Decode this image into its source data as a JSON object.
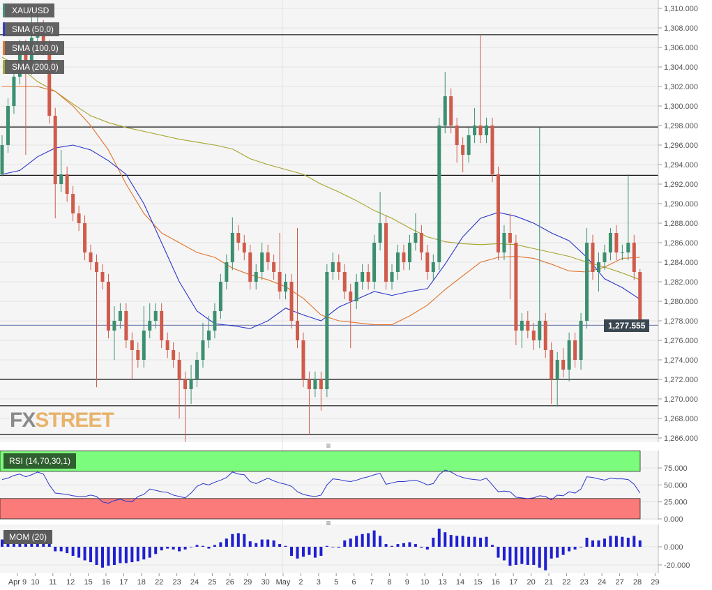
{
  "chart_data": {
    "type": "candlestick",
    "symbol": "XAU/USD",
    "colors": {
      "up": "#3b8f6f",
      "down": "#cf5b4b",
      "sma50": "#2a35c8",
      "sma100": "#e0722a",
      "sma200": "#a6a22a",
      "rsi": "#2a35c8",
      "mom": "#1f1fd0",
      "overbought": "#7cfc7c",
      "oversold": "#fb7b7b"
    },
    "legend": [
      "XAU/USD",
      "SMA (50,0)",
      "SMA (100,0)",
      "SMA (200,0)"
    ],
    "y_ticks": [
      "1,310.000",
      "1,308.000",
      "1,306.000",
      "1,304.000",
      "1,302.000",
      "1,300.000",
      "1,298.000",
      "1,296.000",
      "1,294.000",
      "1,292.000",
      "1,290.000",
      "1,288.000",
      "1,286.000",
      "1,284.000",
      "1,282.000",
      "1,280.000",
      "1,278.000",
      "1,276.000",
      "1,274.000",
      "1,272.000",
      "1,270.000",
      "1,268.000",
      "1,266.000"
    ],
    "ylim": [
      1266,
      1310
    ],
    "last_price": "1,277.555",
    "horizontal_levels": [
      1307.3,
      1297.85,
      1292.9,
      1272.0,
      1269.3,
      1266.35
    ],
    "last_price_level": 1277.555,
    "x_labels": [
      "Apr 9",
      "10",
      "11",
      "12",
      "15",
      "16",
      "17",
      "18",
      "22",
      "23",
      "24",
      "25",
      "26",
      "29",
      "30",
      "May",
      "2",
      "3",
      "5",
      "6",
      "7",
      "8",
      "9",
      "10",
      "13",
      "14",
      "15",
      "16",
      "17",
      "20",
      "21",
      "22",
      "23",
      "24",
      "27",
      "28",
      "29"
    ],
    "candles": [
      [
        1293,
        1297,
        1292.8,
        1296
      ],
      [
        1296,
        1300.8,
        1295.2,
        1300
      ],
      [
        1300,
        1303.8,
        1299.2,
        1303
      ],
      [
        1303,
        1306.8,
        1302.2,
        1306
      ],
      [
        1306,
        1306.8,
        1295,
        1304
      ],
      [
        1304,
        1310,
        1303.2,
        1307
      ],
      [
        1307,
        1310.2,
        1306.2,
        1308
      ],
      [
        1308,
        1308.8,
        1305.2,
        1306
      ],
      [
        1306,
        1306.8,
        1298.2,
        1299
      ],
      [
        1299,
        1299.8,
        1288.5,
        1292
      ],
      [
        1292,
        1295.5,
        1291.2,
        1293
      ],
      [
        1293,
        1293.8,
        1290.2,
        1291
      ],
      [
        1291,
        1291.8,
        1288.2,
        1289
      ],
      [
        1289,
        1289.8,
        1287.2,
        1288
      ],
      [
        1288,
        1288.8,
        1284.2,
        1285
      ],
      [
        1285,
        1285.8,
        1283.2,
        1284
      ],
      [
        1284,
        1284.8,
        1271.2,
        1283
      ],
      [
        1283,
        1283.8,
        1281.2,
        1282
      ],
      [
        1282,
        1282.8,
        1276.2,
        1277
      ],
      [
        1277,
        1279.5,
        1274,
        1278
      ],
      [
        1278,
        1279.8,
        1277.2,
        1279
      ],
      [
        1279,
        1279.8,
        1275.2,
        1276
      ],
      [
        1276,
        1276.8,
        1272,
        1275
      ],
      [
        1275,
        1275.8,
        1273.2,
        1274
      ],
      [
        1274,
        1279.5,
        1273.2,
        1277
      ],
      [
        1277,
        1279.8,
        1276.2,
        1278
      ],
      [
        1278,
        1279.8,
        1277.2,
        1279
      ],
      [
        1279,
        1279.8,
        1275.2,
        1276
      ],
      [
        1276,
        1276.8,
        1274.2,
        1275
      ],
      [
        1275,
        1275.8,
        1273.2,
        1274
      ],
      [
        1274,
        1274.8,
        1268,
        1272
      ],
      [
        1272,
        1272.8,
        1265.6,
        1271
      ],
      [
        1271,
        1273.5,
        1269.5,
        1272
      ],
      [
        1272,
        1274.8,
        1271.2,
        1274
      ],
      [
        1274,
        1277.8,
        1273.2,
        1276
      ],
      [
        1276,
        1278.5,
        1275.2,
        1277
      ],
      [
        1277,
        1279.8,
        1276.2,
        1279
      ],
      [
        1279,
        1282.8,
        1278.2,
        1282
      ],
      [
        1282,
        1284.8,
        1281.2,
        1284
      ],
      [
        1284,
        1288.6,
        1283.2,
        1287
      ],
      [
        1287,
        1287.8,
        1285.2,
        1286
      ],
      [
        1286,
        1286.8,
        1284.2,
        1285
      ],
      [
        1285,
        1285.8,
        1281.2,
        1282
      ],
      [
        1282,
        1283.8,
        1281.2,
        1283
      ],
      [
        1283,
        1286,
        1282.2,
        1285
      ],
      [
        1285,
        1285.8,
        1283.2,
        1284
      ],
      [
        1284,
        1284.8,
        1282.2,
        1283
      ],
      [
        1283,
        1287,
        1280.2,
        1281
      ],
      [
        1281,
        1282.8,
        1280.2,
        1282
      ],
      [
        1282,
        1282.8,
        1277.2,
        1278
      ],
      [
        1278,
        1287.5,
        1275.2,
        1276
      ],
      [
        1276,
        1276.8,
        1271.2,
        1272
      ],
      [
        1272,
        1272.8,
        1266.3,
        1271
      ],
      [
        1271,
        1272.8,
        1270.2,
        1272
      ],
      [
        1272,
        1272.8,
        1268.8,
        1271
      ],
      [
        1271,
        1283.8,
        1270.2,
        1283
      ],
      [
        1283,
        1285,
        1282.2,
        1284
      ],
      [
        1284,
        1284.8,
        1282.2,
        1283
      ],
      [
        1283,
        1283.8,
        1280.2,
        1281
      ],
      [
        1281,
        1281.8,
        1275.2,
        1280
      ],
      [
        1280,
        1282.8,
        1279.2,
        1282
      ],
      [
        1282,
        1283.8,
        1281.2,
        1283
      ],
      [
        1283,
        1283.8,
        1281.2,
        1282
      ],
      [
        1282,
        1286.8,
        1281.2,
        1286
      ],
      [
        1286,
        1291.2,
        1285.2,
        1288
      ],
      [
        1288,
        1288.8,
        1281.2,
        1282
      ],
      [
        1282,
        1283.8,
        1281.2,
        1283
      ],
      [
        1283,
        1285.8,
        1282.2,
        1285
      ],
      [
        1285,
        1285.8,
        1283.2,
        1284
      ],
      [
        1284,
        1286.8,
        1283.2,
        1286
      ],
      [
        1286,
        1289,
        1285.2,
        1287
      ],
      [
        1287,
        1287.8,
        1284.2,
        1285
      ],
      [
        1285,
        1285.8,
        1282.2,
        1283
      ],
      [
        1283,
        1284.8,
        1282.2,
        1284
      ],
      [
        1284,
        1298.8,
        1283.2,
        1298
      ],
      [
        1298,
        1303.5,
        1297.2,
        1301
      ],
      [
        1301,
        1301.8,
        1297.2,
        1298
      ],
      [
        1298,
        1298.8,
        1294.2,
        1296
      ],
      [
        1296,
        1296.8,
        1293.2,
        1295
      ],
      [
        1295,
        1297.8,
        1294.2,
        1297
      ],
      [
        1297,
        1299.8,
        1296.2,
        1298
      ],
      [
        1298,
        1307.3,
        1296.2,
        1297
      ],
      [
        1297,
        1298.8,
        1296.2,
        1298
      ],
      [
        1298,
        1298.8,
        1292.2,
        1293
      ],
      [
        1293,
        1293.8,
        1284.2,
        1285
      ],
      [
        1285,
        1287.8,
        1284.2,
        1287
      ],
      [
        1287,
        1289,
        1280.2,
        1286
      ],
      [
        1286,
        1286.8,
        1275.5,
        1277
      ],
      [
        1277,
        1278.8,
        1275.2,
        1278
      ],
      [
        1278,
        1279,
        1276.2,
        1277
      ],
      [
        1277,
        1277.8,
        1275,
        1276
      ],
      [
        1276,
        1297.8,
        1275.2,
        1278
      ],
      [
        1278,
        1278.8,
        1274.2,
        1275
      ],
      [
        1275,
        1275.8,
        1269.5,
        1272
      ],
      [
        1272,
        1274.8,
        1269.2,
        1274
      ],
      [
        1274,
        1275.2,
        1272.2,
        1273
      ],
      [
        1273,
        1276.8,
        1271.8,
        1276
      ],
      [
        1276,
        1276.8,
        1273.2,
        1274
      ],
      [
        1274,
        1278.8,
        1273,
        1278
      ],
      [
        1278,
        1287.5,
        1277.2,
        1286
      ],
      [
        1286,
        1286.8,
        1282.2,
        1283
      ],
      [
        1283,
        1285,
        1281,
        1284
      ],
      [
        1284,
        1285.8,
        1283.2,
        1285
      ],
      [
        1285,
        1287.5,
        1284.2,
        1287
      ],
      [
        1287,
        1287.8,
        1284.2,
        1285
      ],
      [
        1285,
        1285.8,
        1284.2,
        1285
      ],
      [
        1285,
        1293,
        1284.2,
        1286
      ],
      [
        1286,
        1286.8,
        1282.2,
        1283
      ],
      [
        1283,
        1283.3,
        1276.9,
        1277.555
      ]
    ],
    "sma_daily": {
      "sma50": [
        1293,
        1293.4,
        1294.8,
        1295.7,
        1296,
        1295.5,
        1294.4,
        1293,
        1290,
        1286,
        1282,
        1279,
        1277.7,
        1277.5,
        1277.2,
        1278,
        1279.3,
        1278.6,
        1278,
        1279.4,
        1280.2,
        1281,
        1280.6,
        1281,
        1281.3,
        1283.8,
        1286.6,
        1288.5,
        1289.1,
        1288.7,
        1288,
        1287,
        1286.2,
        1284.5,
        1282.3,
        1281.4,
        1280.2
      ],
      "sma100": [
        1302,
        1302,
        1302,
        1301.5,
        1300,
        1298,
        1295.5,
        1292,
        1289,
        1287,
        1286,
        1285,
        1284.5,
        1283.4,
        1282.7,
        1282.2,
        1281.5,
        1280.3,
        1278.6,
        1278,
        1277.8,
        1277.6,
        1277.6,
        1278.5,
        1279.6,
        1281.2,
        1282.6,
        1284,
        1284.5,
        1284.6,
        1284.4,
        1283.8,
        1283.1,
        1283,
        1283.5,
        1284.4,
        1284.5
      ],
      "sma200": [
        1305,
        1304,
        1302.5,
        1301.5,
        1300.2,
        1299,
        1298.3,
        1297.8,
        1297.4,
        1297,
        1296.6,
        1296.3,
        1296,
        1295.6,
        1294.6,
        1294,
        1293.5,
        1293,
        1292,
        1291.2,
        1290.3,
        1289.3,
        1288.5,
        1287.5,
        1286.6,
        1286.1,
        1285.9,
        1285.8,
        1285.9,
        1285.8,
        1285.4,
        1285,
        1284.6,
        1284,
        1283.5,
        1282.9,
        1282.2
      ]
    },
    "rsi": {
      "label": "RSI (14,70,30,1)",
      "overbought": 70,
      "oversold": 30,
      "y_ticks": [
        "75.000",
        "50.000",
        "25.000",
        "0.000"
      ],
      "values": [
        58,
        60,
        64,
        66,
        62,
        65,
        69,
        66,
        50,
        38,
        37,
        36,
        34,
        33,
        33,
        35,
        33,
        25,
        23,
        27,
        29,
        26,
        25,
        33,
        36,
        44,
        42,
        40,
        39,
        35,
        33,
        31,
        38,
        48,
        52,
        50,
        54,
        57,
        61,
        69,
        66,
        65,
        55,
        52,
        56,
        60,
        56,
        53,
        51,
        48,
        40,
        36,
        34,
        33,
        35,
        50,
        59,
        58,
        56,
        55,
        57,
        60,
        62,
        65,
        67,
        51,
        53,
        55,
        55,
        56,
        57,
        54,
        50,
        52,
        65,
        72,
        69,
        64,
        61,
        59,
        58,
        57,
        60,
        50,
        40,
        41,
        40,
        32,
        31,
        30,
        31,
        34,
        33,
        28,
        35,
        34,
        40,
        38,
        44,
        62,
        61,
        59,
        57,
        60,
        59,
        59,
        58,
        51,
        38
      ]
    },
    "mom": {
      "label": "MOM (20)",
      "y_ticks": [
        "0.000",
        "-20.000"
      ],
      "values": [
        8,
        10,
        10,
        12,
        12,
        15,
        11,
        10,
        5,
        -5,
        -5,
        -7,
        -10,
        -12,
        -15,
        -17,
        -20,
        -23,
        -21,
        -20,
        -18,
        -18,
        -17,
        -16,
        -14,
        -12,
        -8,
        -4,
        -2,
        -3,
        -5,
        -3,
        0,
        2,
        1,
        -2,
        2,
        5,
        9,
        14,
        15,
        14,
        6,
        4,
        8,
        8,
        7,
        3,
        1,
        -10,
        -13,
        -11,
        -9,
        -12,
        -10,
        1,
        0,
        -1,
        7,
        9,
        12,
        14,
        15,
        18,
        12,
        3,
        1,
        3,
        4,
        5,
        3,
        -1,
        -3,
        10,
        20,
        16,
        13,
        12,
        12,
        11,
        11,
        10,
        11,
        2,
        -12,
        -15,
        -21,
        -20,
        -19,
        -20,
        -20,
        -23,
        -26,
        -13,
        -12,
        -9,
        -5,
        -3,
        0,
        10,
        7,
        7,
        9,
        12,
        12,
        11,
        10,
        12,
        7
      ]
    }
  },
  "branding": {
    "fx": "FX",
    "street": "STREET"
  }
}
